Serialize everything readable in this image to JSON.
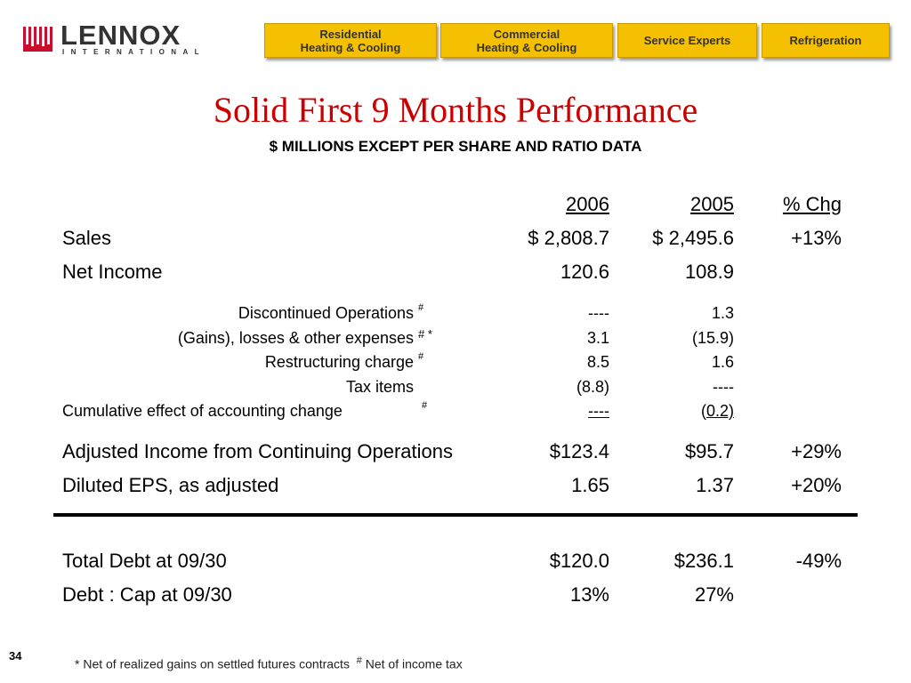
{
  "logo": {
    "word": "LENNOX",
    "sub": "INTERNATIONAL"
  },
  "nav": [
    {
      "line1": "Residential",
      "line2": "Heating & Cooling"
    },
    {
      "line1": "Commercial",
      "line2": "Heating & Cooling"
    },
    {
      "line1": "Service Experts",
      "line2": ""
    },
    {
      "line1": "Refrigeration",
      "line2": ""
    }
  ],
  "title": "Solid First 9 Months Performance",
  "subtitle": "$ MILLIONS EXCEPT PER SHARE AND RATIO DATA",
  "headers": {
    "y2006": "2006",
    "y2005": "2005",
    "chg": "% Chg"
  },
  "rows": {
    "sales": {
      "label": "Sales",
      "v2006": "$ 2,808.7",
      "v2005": "$ 2,495.6",
      "chg": "+13%"
    },
    "net_income": {
      "label": "Net Income",
      "v2006": "120.6",
      "v2005": "108.9"
    },
    "disc_ops": {
      "label": "Discontinued Operations",
      "mark": "#",
      "v2006": "----",
      "v2005": "1.3"
    },
    "gains": {
      "label": "(Gains), losses & other expenses",
      "mark": "# *",
      "v2006": "3.1",
      "v2005": "(15.9)"
    },
    "restructuring": {
      "label": "Restructuring charge",
      "mark": "#",
      "v2006": "8.5",
      "v2005": "1.6"
    },
    "tax": {
      "label": "Tax items",
      "v2006": "(8.8)",
      "v2005": "----"
    },
    "cumulative": {
      "label": "Cumulative effect of accounting change",
      "mark": "#",
      "v2006": "----",
      "v2005_open": "(",
      "v2005": "0.2)"
    },
    "adjusted_income": {
      "label": "Adjusted Income from Continuing Operations",
      "v2006": "$123.4",
      "v2005": "$95.7",
      "chg": "+29%"
    },
    "eps": {
      "label": "Diluted EPS, as adjusted",
      "v2006": "1.65",
      "v2005": "1.37",
      "chg": "+20%"
    },
    "total_debt": {
      "label": "Total Debt at 09/30",
      "v2006": "$120.0",
      "v2005": "$236.1",
      "chg": "-49%"
    },
    "debt_cap": {
      "label": "Debt : Cap at 09/30",
      "v2006": "13%",
      "v2005": "27%"
    }
  },
  "page_number": "34",
  "footnote": {
    "star": "* Net of realized gains on settled futures contracts",
    "hash_mark": "#",
    "hash_text": "Net of income tax"
  },
  "colors": {
    "title": "#cc0000",
    "nav_bg": "#f5c000",
    "logo_red": "#c8102e"
  }
}
